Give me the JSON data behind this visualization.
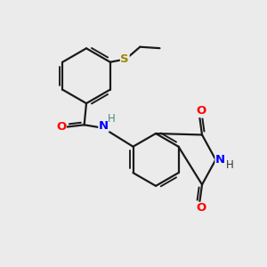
{
  "bg_color": "#ebebeb",
  "bond_color": "#1a1a1a",
  "bond_width": 1.6,
  "figsize": [
    3.0,
    3.0
  ],
  "dpi": 100,
  "xlim": [
    0,
    10
  ],
  "ylim": [
    0,
    10
  ]
}
